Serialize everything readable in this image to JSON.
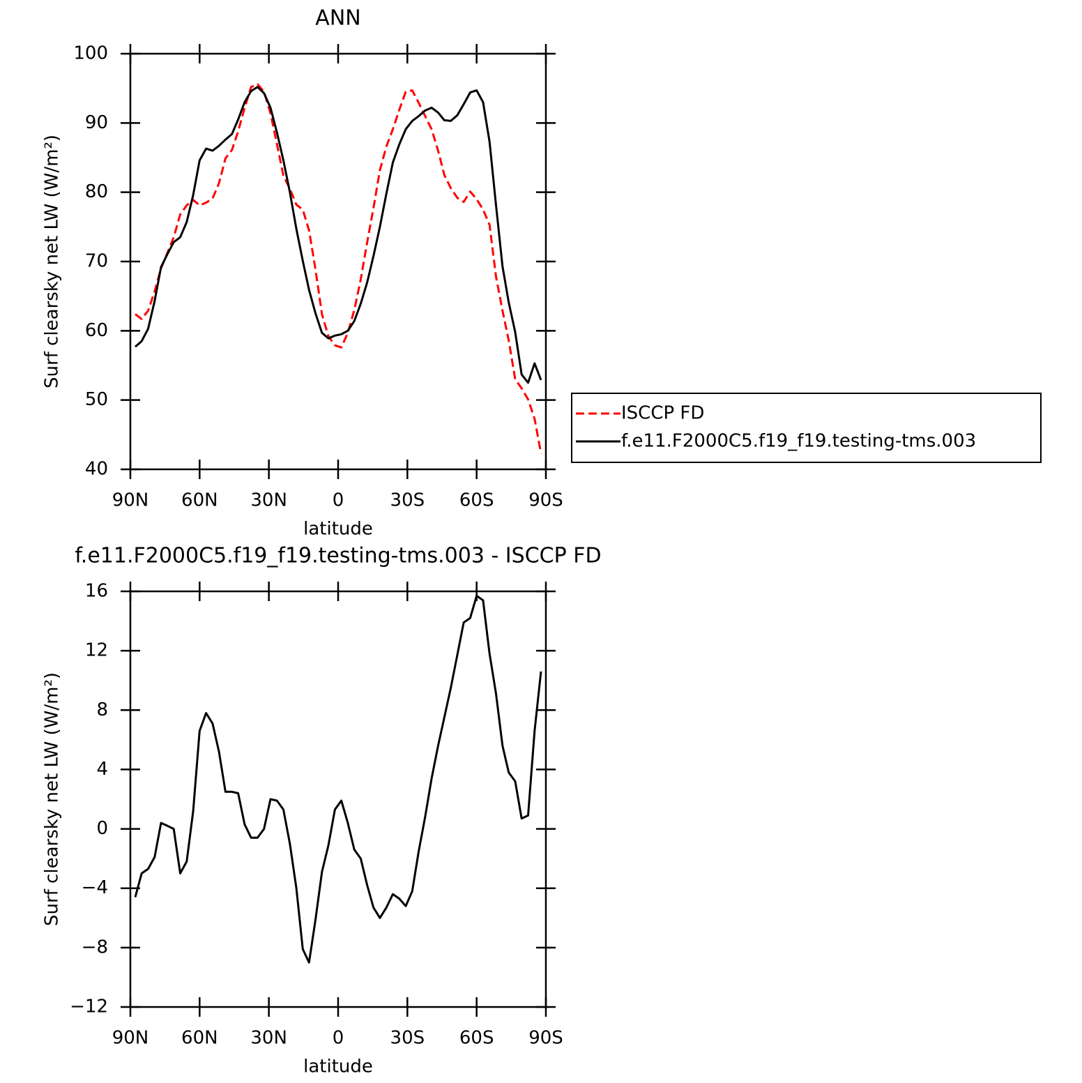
{
  "chart_data": [
    {
      "type": "line",
      "title": "ANN",
      "xlabel": "latitude",
      "ylabel": "Surf clearsky net LW (W/m²)",
      "x": [
        87.9,
        85.1,
        82.3,
        79.5,
        76.7,
        73.9,
        71.2,
        68.4,
        65.6,
        62.8,
        60.0,
        57.2,
        54.4,
        51.6,
        48.8,
        46.0,
        43.3,
        40.5,
        37.7,
        34.9,
        32.1,
        29.3,
        26.5,
        23.7,
        20.9,
        18.1,
        15.3,
        12.6,
        9.8,
        7.0,
        4.2,
        1.4,
        -1.4,
        -4.2,
        -7.0,
        -9.8,
        -12.6,
        -15.3,
        -18.1,
        -20.9,
        -23.7,
        -26.5,
        -29.3,
        -32.1,
        -34.9,
        -37.7,
        -40.5,
        -43.3,
        -46.0,
        -48.8,
        -51.6,
        -54.4,
        -57.2,
        -60.0,
        -62.8,
        -65.6,
        -68.4,
        -71.2,
        -73.9,
        -76.7,
        -79.5,
        -82.3,
        -85.1,
        -87.9
      ],
      "series": [
        {
          "name": "ISCCP FD",
          "color": "#ff0000",
          "linestyle": "dashed",
          "values": [
            62.4,
            61.7,
            62.9,
            65.7,
            69.0,
            71.3,
            73.5,
            76.8,
            78.1,
            78.9,
            78.1,
            78.5,
            79.1,
            81.3,
            84.9,
            86.1,
            88.8,
            92.2,
            95.2,
            95.6,
            94.5,
            91.4,
            86.9,
            82.4,
            80.5,
            78.2,
            77.5,
            74.5,
            68.8,
            62.4,
            59.2,
            57.9,
            57.6,
            59.7,
            63.0,
            67.4,
            72.8,
            77.7,
            83.2,
            86.6,
            89.1,
            91.9,
            94.5,
            94.7,
            92.9,
            91.0,
            89.1,
            86.0,
            82.5,
            80.6,
            79.2,
            78.6,
            80.1,
            79.0,
            77.5,
            75.3,
            67.8,
            62.9,
            58.6,
            53.0,
            51.7,
            50.1,
            47.3,
            42.3
          ]
        },
        {
          "name": "f.e11.F2000C5.f19_f19.testing-tms.003",
          "color": "#000000",
          "linestyle": "solid",
          "values": [
            57.7,
            58.5,
            60.3,
            64.3,
            69.2,
            71.1,
            72.8,
            73.5,
            75.7,
            79.6,
            84.6,
            86.3,
            86.0,
            86.7,
            87.6,
            88.4,
            90.5,
            93.0,
            94.6,
            95.2,
            94.3,
            92.2,
            88.6,
            84.6,
            80.0,
            74.7,
            70.1,
            65.9,
            62.5,
            59.7,
            58.9,
            59.3,
            59.5,
            60.0,
            61.4,
            63.9,
            67.0,
            70.8,
            75.0,
            79.8,
            84.3,
            86.9,
            89.1,
            90.3,
            91.0,
            91.8,
            92.2,
            91.5,
            90.4,
            90.3,
            91.1,
            92.7,
            94.4,
            94.7,
            93.0,
            87.3,
            78.1,
            69.3,
            64.1,
            59.8,
            53.7,
            52.5,
            55.3,
            52.9
          ]
        }
      ],
      "xlim": [
        90,
        -90
      ],
      "xticks": [
        {
          "value": 90,
          "label": "90N"
        },
        {
          "value": 60,
          "label": "60N"
        },
        {
          "value": 30,
          "label": "30N"
        },
        0,
        {
          "value": -30,
          "label": "30S"
        },
        {
          "value": -60,
          "label": "60S"
        },
        {
          "value": -90,
          "label": "90S"
        }
      ],
      "ylim": [
        40,
        100
      ],
      "yticks": [
        40,
        50,
        60,
        70,
        80,
        90,
        100
      ],
      "legend": "right"
    },
    {
      "type": "line",
      "title": "f.e11.F2000C5.f19_f19.testing-tms.003 - ISCCP FD",
      "xlabel": "latitude",
      "ylabel": "Surf clearsky net LW (W/m²)",
      "x": [
        87.9,
        85.1,
        82.3,
        79.5,
        76.7,
        73.9,
        71.2,
        68.4,
        65.6,
        62.8,
        60.0,
        57.2,
        54.4,
        51.6,
        48.8,
        46.0,
        43.3,
        40.5,
        37.7,
        34.9,
        32.1,
        29.3,
        26.5,
        23.7,
        20.9,
        18.1,
        15.3,
        12.6,
        9.8,
        7.0,
        4.2,
        1.4,
        -1.4,
        -4.2,
        -7.0,
        -9.8,
        -12.6,
        -15.3,
        -18.1,
        -20.9,
        -23.7,
        -26.5,
        -29.3,
        -32.1,
        -34.9,
        -37.7,
        -40.5,
        -43.3,
        -46.0,
        -48.8,
        -51.6,
        -54.4,
        -57.2,
        -60.0,
        -62.8,
        -65.6,
        -68.4,
        -71.2,
        -73.9,
        -76.7,
        -79.5,
        -82.3,
        -85.1,
        -87.9
      ],
      "series": [
        {
          "color": "#000000",
          "linestyle": "solid",
          "values": [
            -4.6,
            -3.0,
            -2.7,
            -1.9,
            0.4,
            0.2,
            0.0,
            -3.0,
            -2.2,
            1.2,
            6.6,
            7.8,
            7.1,
            5.2,
            2.5,
            2.5,
            2.4,
            0.3,
            -0.6,
            -0.6,
            0.0,
            2.0,
            1.9,
            1.3,
            -1.0,
            -4.0,
            -8.1,
            -9.0,
            -6.1,
            -2.9,
            -1.1,
            1.3,
            1.9,
            0.4,
            -1.4,
            -2.0,
            -3.8,
            -5.3,
            -6.0,
            -5.3,
            -4.4,
            -4.7,
            -5.2,
            -4.2,
            -1.5,
            0.8,
            3.4,
            5.6,
            7.5,
            9.5,
            11.7,
            13.9,
            14.2,
            15.7,
            15.4,
            11.8,
            9.1,
            5.6,
            3.8,
            3.2,
            0.7,
            0.9,
            6.6,
            10.6
          ]
        }
      ],
      "xlim": [
        90,
        -90
      ],
      "xticks": [
        {
          "value": 90,
          "label": "90N"
        },
        {
          "value": 60,
          "label": "60N"
        },
        {
          "value": 30,
          "label": "30N"
        },
        0,
        {
          "value": -30,
          "label": "30S"
        },
        {
          "value": -60,
          "label": "60S"
        },
        {
          "value": -90,
          "label": "90S"
        }
      ],
      "ylim": [
        -12,
        16
      ],
      "yticks": [
        {
          "value": -12,
          "label": "−12"
        },
        {
          "value": -8,
          "label": "−8"
        },
        {
          "value": -4,
          "label": "−4"
        },
        0,
        4,
        8,
        12,
        16
      ]
    }
  ]
}
